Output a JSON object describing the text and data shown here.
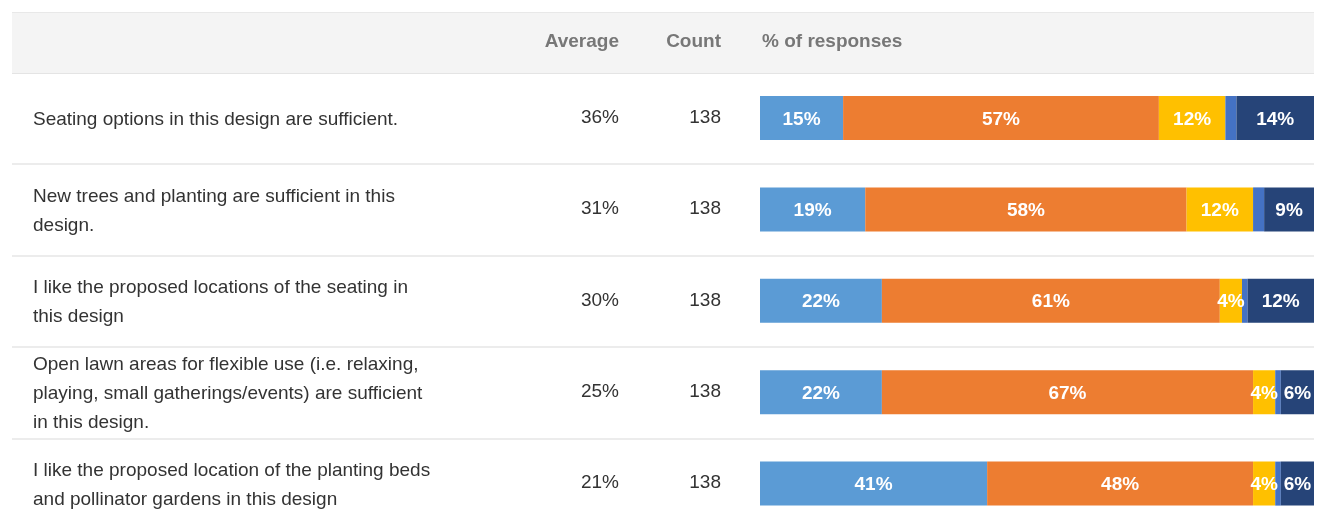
{
  "chart_data": {
    "type": "bar",
    "orientation": "horizontal",
    "stacked": true,
    "xlabel": "% of responses",
    "categories": [
      "Seating options in this design are sufficient.",
      "New trees and planting are sufficient in this design.",
      "I like the proposed locations of the seating in this design",
      "Open lawn areas for flexible use (i.e. relaxing, playing, small gatherings/events) are sufficient in this design.",
      "I like the proposed location of the planting beds and pollinator gardens in this design"
    ],
    "series": [
      {
        "color": "#5b9bd5",
        "values": [
          15,
          19,
          22,
          22,
          41
        ],
        "value_labels": [
          "15%",
          "19%",
          "22%",
          "22%",
          "41%"
        ]
      },
      {
        "color": "#ed7d31",
        "values": [
          57,
          58,
          61,
          67,
          48
        ],
        "value_labels": [
          "57%",
          "58%",
          "61%",
          "67%",
          "48%"
        ]
      },
      {
        "color": "#ffc000",
        "values": [
          12,
          12,
          4,
          4,
          4
        ],
        "value_labels": [
          "12%",
          "12%",
          "4%",
          "4%",
          "4%"
        ]
      },
      {
        "color": "#4472c4",
        "values": [
          2,
          2,
          1,
          1,
          1
        ],
        "value_labels": [
          null,
          null,
          null,
          null,
          null
        ]
      },
      {
        "color": "#264478",
        "values": [
          14,
          9,
          12,
          6,
          6
        ],
        "value_labels": [
          "14%",
          "9%",
          "12%",
          "6%",
          "6%"
        ]
      }
    ],
    "xlim": [
      0,
      100
    ],
    "tick_labels": "y",
    "annotations": [
      "Average",
      "Count",
      "36%",
      "138",
      "31%",
      "138",
      "30%",
      "138",
      "25%",
      "138",
      "21%",
      "138"
    ]
  }
}
